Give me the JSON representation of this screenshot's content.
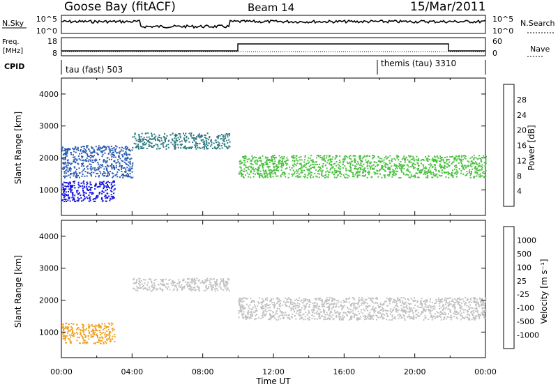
{
  "header": {
    "station": "Goose Bay (fitACF)",
    "beam": "Beam 14",
    "date": "15/Mar/2011"
  },
  "noise_panel": {
    "left_label": "N.Sky",
    "right_label": "N.Search",
    "left_ticks": [
      "10^5",
      "10^0"
    ],
    "right_ticks": [
      "10^5",
      "10^0"
    ]
  },
  "freq_panel": {
    "left_label_1": "Freq.",
    "left_label_2": "[MHz]",
    "right_label": "Nave",
    "left_ticks": [
      "18",
      "8"
    ],
    "right_ticks": [
      "60",
      "0"
    ]
  },
  "cpid_panel": {
    "label": "CPID",
    "modes": [
      {
        "name": "tau (fast) 503",
        "start_hour": 0,
        "end_hour": 18
      },
      {
        "name": "themis (tau) 3310",
        "start_hour": 18,
        "end_hour": 24
      }
    ]
  },
  "x_axis": {
    "label": "Time UT",
    "ticks": [
      "00:00",
      "04:00",
      "08:00",
      "12:00",
      "16:00",
      "20:00",
      "00:00"
    ]
  },
  "chart_data": [
    {
      "type": "heatmap",
      "name": "power",
      "ylabel": "Slant Range [km]",
      "yticks": [
        "1000",
        "2000",
        "3000",
        "4000"
      ],
      "ylim": [
        200,
        4500
      ],
      "xlim": [
        0,
        24
      ],
      "colorbar": {
        "label": "Power [dB]",
        "ticks": [
          "4",
          "8",
          "12",
          "16",
          "20",
          "24",
          "28"
        ],
        "colors": [
          "#1010e0",
          "#2040c0",
          "#2e7a80",
          "#3a9a50",
          "#4ac040",
          "#b8d020",
          "#f0e020",
          "#f0a020",
          "#f06010",
          "#e01010"
        ]
      },
      "scatter_bands": [
        {
          "t0": 0.0,
          "t1": 4.0,
          "r0": 1400,
          "r1": 2400,
          "color": "#2a5ab0"
        },
        {
          "t0": 4.0,
          "t1": 9.5,
          "r0": 2300,
          "r1": 2800,
          "color": "#2e7a80"
        },
        {
          "t0": 10.0,
          "t1": 24.0,
          "r0": 1400,
          "r1": 2100,
          "color": "#4ac040"
        },
        {
          "t0": 0.0,
          "t1": 3.0,
          "r0": 650,
          "r1": 1300,
          "color": "#1010e0"
        }
      ]
    },
    {
      "type": "heatmap",
      "name": "velocity",
      "ylabel": "Slant Range [km]",
      "yticks": [
        "1000",
        "2000",
        "3000",
        "4000"
      ],
      "ylim": [
        200,
        4500
      ],
      "xlim": [
        0,
        24
      ],
      "colorbar": {
        "label": "Velocity [m s⁻¹]",
        "ticks": [
          "1000",
          "500",
          "100",
          "25",
          "-25",
          "-100",
          "-500",
          "-1000"
        ],
        "colors": [
          "#1010e0",
          "#2050a0",
          "#2a8a6a",
          "#40c040",
          "#c0c0c0",
          "#c0c0c0",
          "#f0d020",
          "#f09010",
          "#f05010",
          "#e01010"
        ]
      },
      "scatter_bands": [
        {
          "t0": 4.0,
          "t1": 9.5,
          "r0": 2300,
          "r1": 2700,
          "color": "#c0c0c0"
        },
        {
          "t0": 10.0,
          "t1": 24.0,
          "r0": 1400,
          "r1": 2100,
          "color": "#c0c0c0"
        },
        {
          "t0": 0.0,
          "t1": 3.0,
          "r0": 650,
          "r1": 1300,
          "color": "#f0a020"
        }
      ]
    }
  ]
}
